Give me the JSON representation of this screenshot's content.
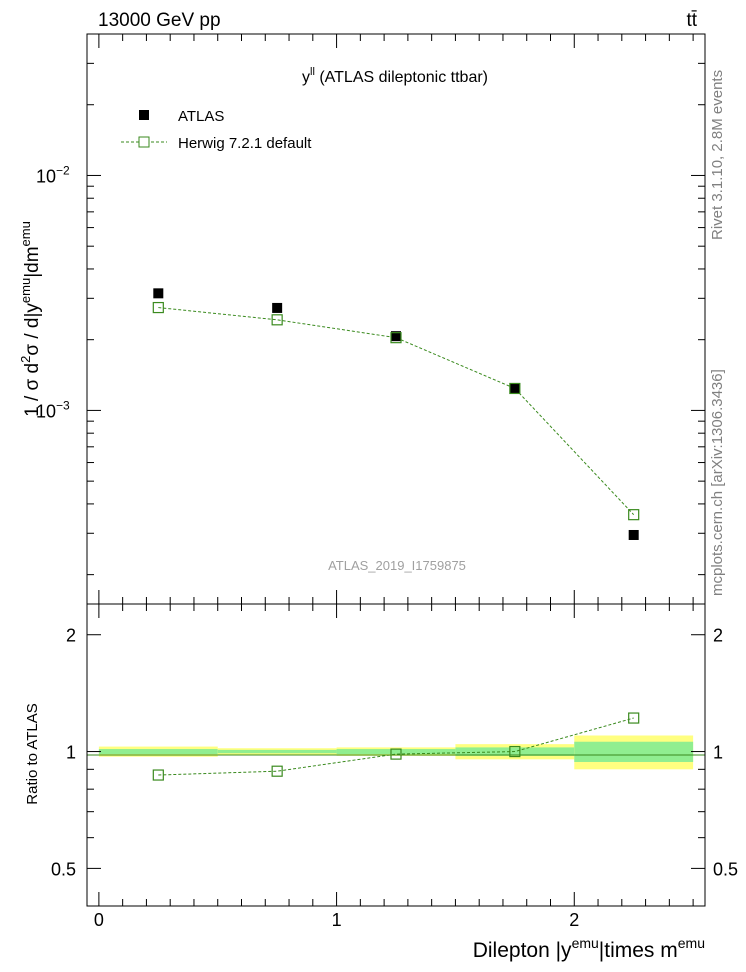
{
  "header": {
    "left": "13000 GeV pp",
    "right": "tt̄"
  },
  "main_panel": {
    "title_prefix": "y",
    "title_sup": "ll",
    "title_rest": " (ATLAS dileptonic ttbar)",
    "watermark": "ATLAS_2019_I1759875",
    "ylabel_parts": [
      "1 / σ  d",
      "2",
      "σ / d|y",
      "emu",
      "|dm",
      "emu"
    ],
    "yticks": [
      {
        "value": 0.001,
        "mantissa": "10",
        "exp": "−3"
      },
      {
        "value": 0.01,
        "mantissa": "10",
        "exp": "−2"
      }
    ]
  },
  "ratio_panel": {
    "ylabel": "Ratio to ATLAS",
    "yticks": [
      {
        "value": 0.5,
        "label": "0.5"
      },
      {
        "value": 1,
        "label": "1"
      },
      {
        "value": 2,
        "label": "2"
      }
    ]
  },
  "xaxis": {
    "label_parts": [
      "Dilepton |y",
      "emu",
      "|times m",
      "emu"
    ],
    "ticks": [
      {
        "value": 0,
        "label": "0"
      },
      {
        "value": 1,
        "label": "1"
      },
      {
        "value": 2,
        "label": "2"
      }
    ]
  },
  "side_labels": {
    "rivet": "Rivet 3.1.10,  2.8M events",
    "mcplots": "mcplots.cern.ch [arXiv:1306.3436]"
  },
  "legend": [
    {
      "name": "ATLAS",
      "style": "data"
    },
    {
      "name": "Herwig 7.2.1 default",
      "style": "mc"
    }
  ],
  "colors": {
    "data": "#000000",
    "mc": "#3a8a1e",
    "band_outer": "#ffff80",
    "band_inner": "#90ee90",
    "side_text": "#808080"
  },
  "chart_data": {
    "type": "scatter",
    "x_bin_edges": [
      0,
      0.5,
      1,
      1.5,
      2,
      2.5
    ],
    "x": [
      0.25,
      0.75,
      1.25,
      1.75,
      2.25
    ],
    "xlim": [
      -0.05,
      2.55
    ],
    "ylim": [
      0.00015,
      0.04
    ],
    "ylog": true,
    "ratio_ylim": [
      0.4,
      2.4
    ],
    "ratio_ylog": true,
    "series": [
      {
        "name": "ATLAS",
        "values": [
          0.00315,
          0.00273,
          0.00207,
          0.00124,
          0.000295
        ]
      },
      {
        "name": "Herwig 7.2.1 default",
        "values": [
          0.00274,
          0.00243,
          0.00204,
          0.00124,
          0.00036
        ]
      }
    ],
    "ratio_values": [
      0.87,
      0.89,
      0.985,
      1.0,
      1.22
    ],
    "ratio_band_inner": [
      [
        0.985,
        1.015
      ],
      [
        0.99,
        1.01
      ],
      [
        0.985,
        1.015
      ],
      [
        0.975,
        1.025
      ],
      [
        0.94,
        1.06
      ]
    ],
    "ratio_band_outer": [
      [
        0.97,
        1.03
      ],
      [
        0.98,
        1.02
      ],
      [
        0.975,
        1.025
      ],
      [
        0.955,
        1.045
      ],
      [
        0.9,
        1.1
      ]
    ]
  }
}
